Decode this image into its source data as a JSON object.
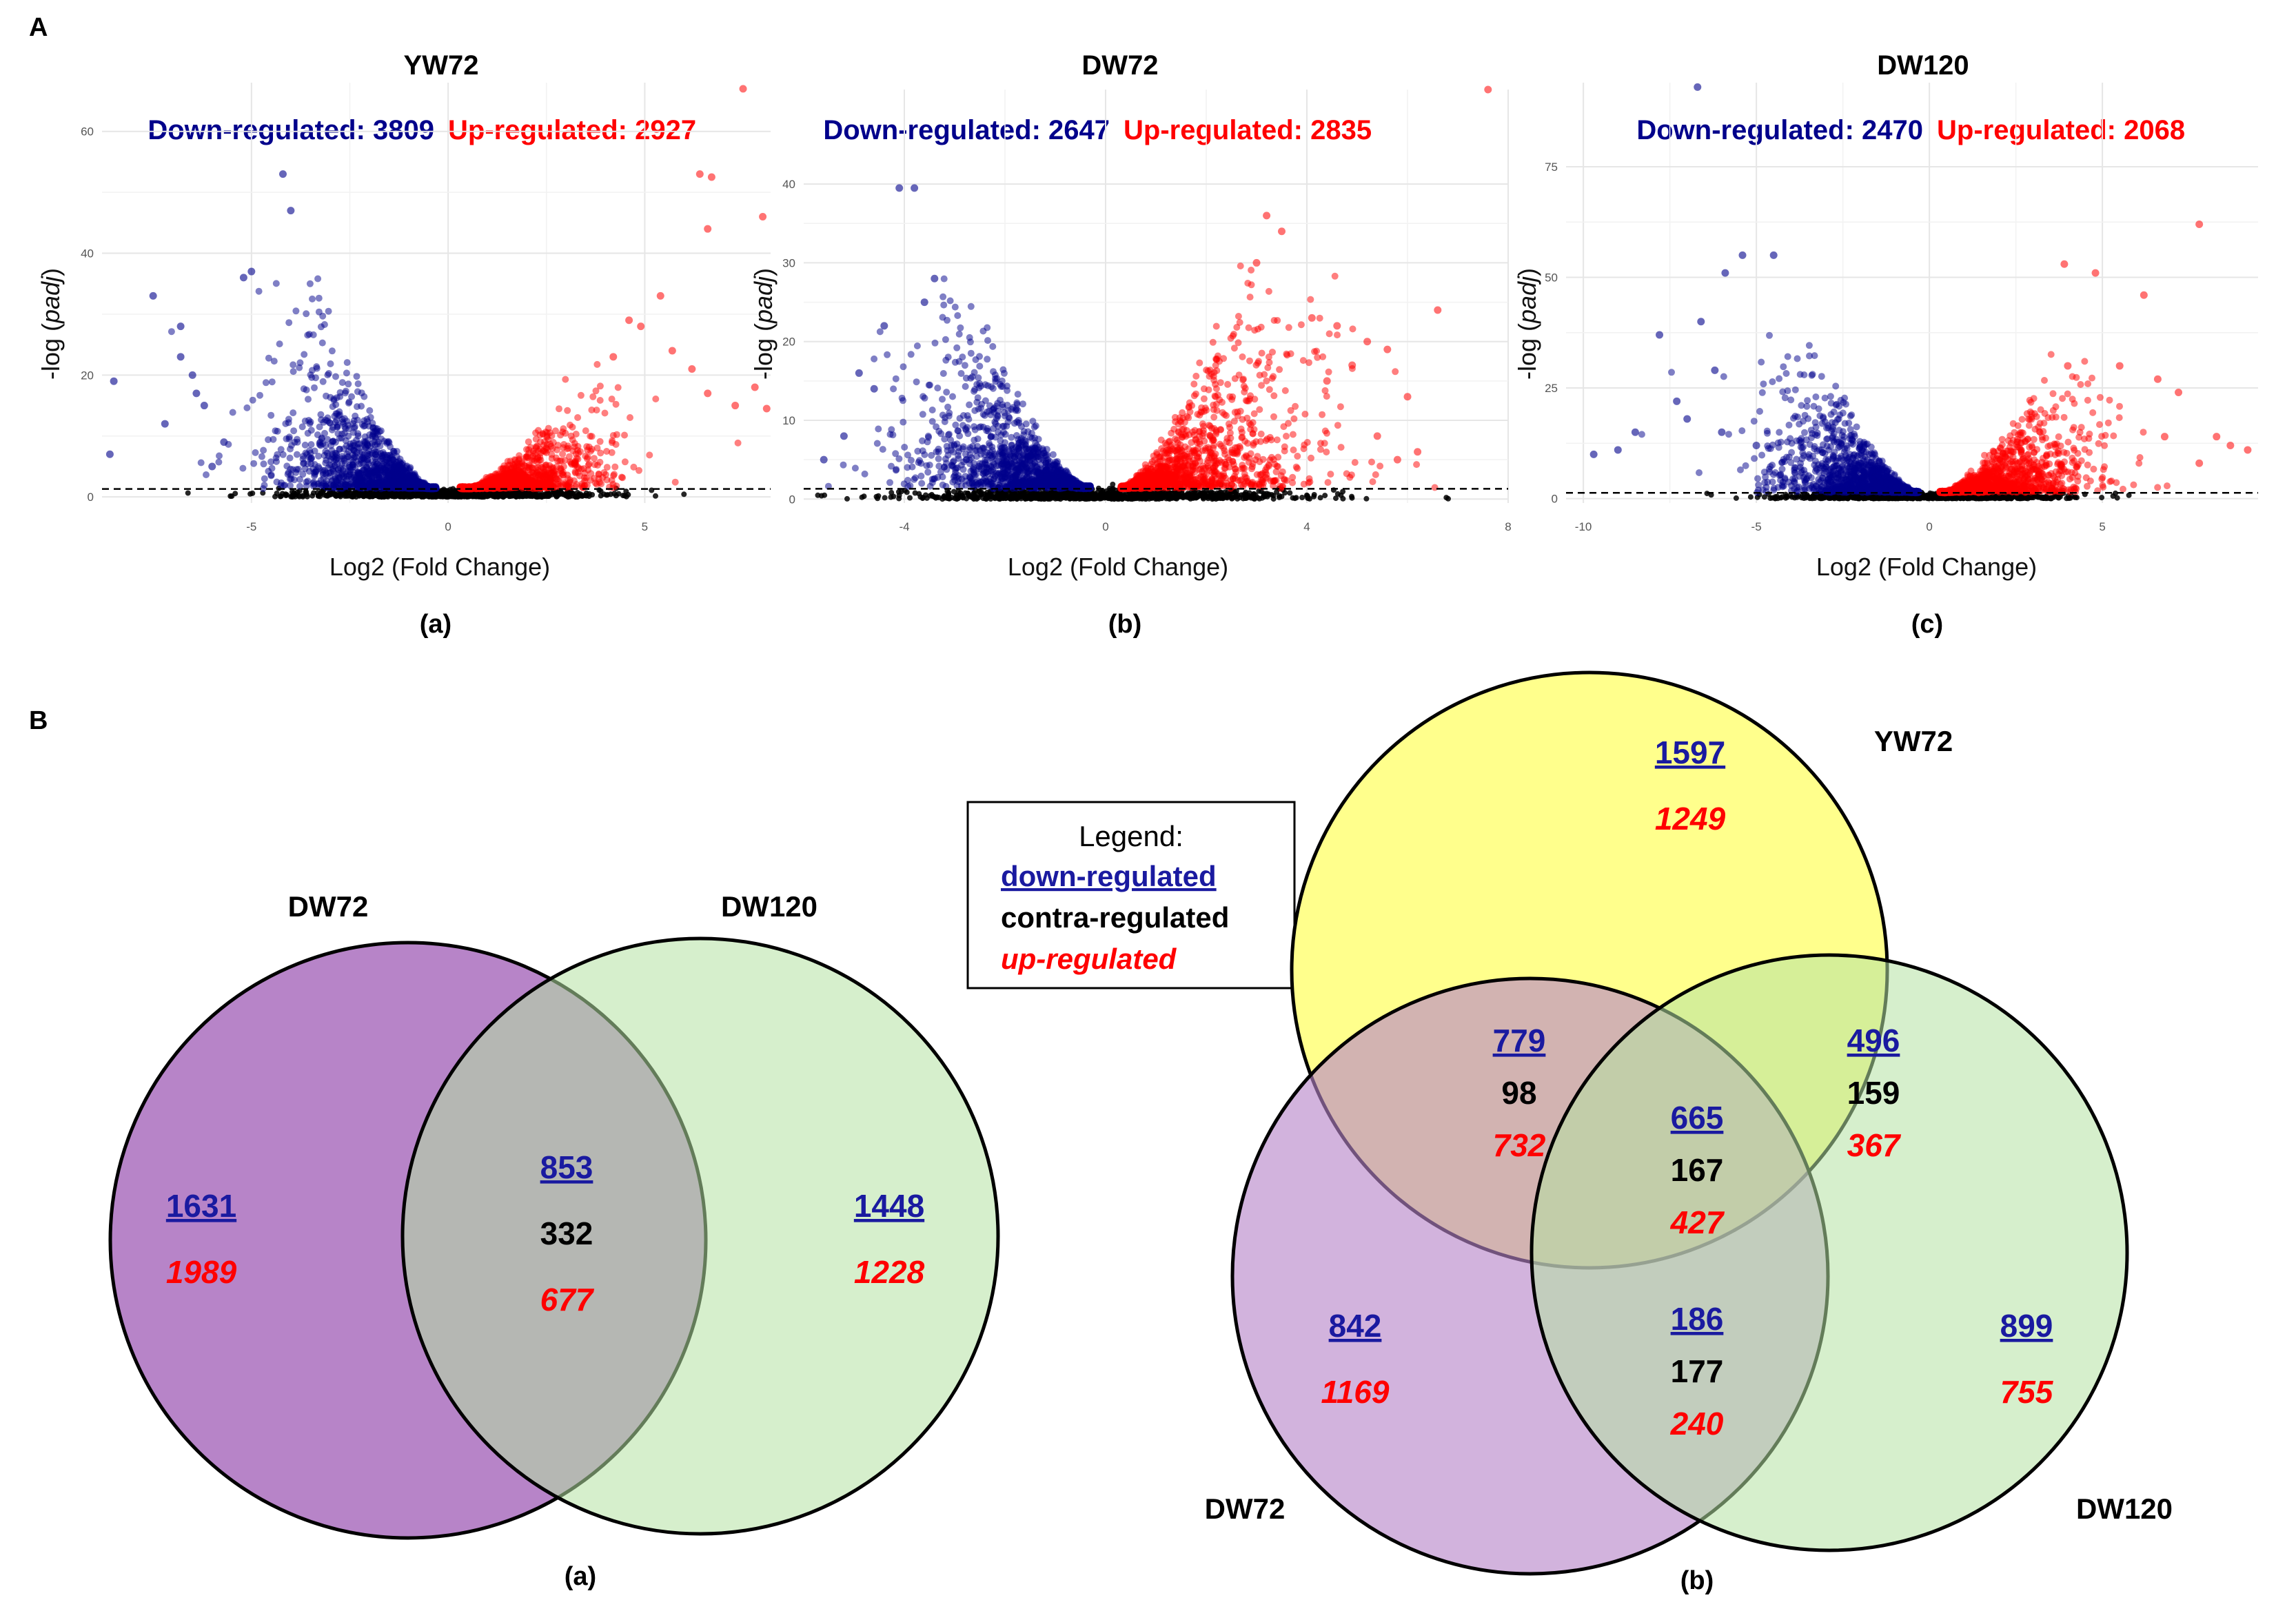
{
  "panel_A_label": "A",
  "panel_B_label": "B",
  "chart_data": [
    {
      "type": "scatter",
      "id": "a",
      "title": "YW72",
      "subtitle_down": "Down-regulated: 3809",
      "subtitle_up": "Up-regulated: 2927",
      "down_count": 3809,
      "up_count": 2927,
      "xlabel": "Log2 (Fold Change)",
      "ylabel_prefix": "-log (",
      "ylabel_italic": "padj",
      "ylabel_suffix": ")",
      "xlim": [
        -8.8,
        8.2
      ],
      "ylim": [
        -1,
        68
      ],
      "xticks": [
        -5,
        0,
        5
      ],
      "yticks": [
        0,
        20,
        40,
        60
      ],
      "threshold": 1.3,
      "sub_label": "(a)",
      "down_color": "#00008B",
      "up_color": "#FF0000",
      "ns_color": "#000000",
      "cloud": {
        "down_peak_x": -3.3,
        "down_peak_y": 38,
        "up_peak_x": 3.3,
        "up_peak_y": 23,
        "spread_down": 3.2,
        "spread_up": 3.0
      },
      "outliers_up": [
        [
          7.5,
          67
        ],
        [
          6.4,
          53
        ],
        [
          6.7,
          52.5
        ],
        [
          8.0,
          46
        ],
        [
          6.6,
          44
        ],
        [
          5.4,
          33
        ],
        [
          4.6,
          29
        ],
        [
          4.9,
          28
        ],
        [
          5.7,
          24
        ],
        [
          4.2,
          23
        ],
        [
          6.2,
          21
        ],
        [
          7.8,
          18
        ],
        [
          6.6,
          17
        ],
        [
          7.3,
          15
        ],
        [
          8.1,
          14.5
        ]
      ],
      "outliers_down": [
        [
          -4.2,
          53
        ],
        [
          -4.0,
          47
        ],
        [
          -5.0,
          37
        ],
        [
          -5.2,
          36
        ],
        [
          -7.5,
          33
        ],
        [
          -6.8,
          28
        ],
        [
          -8.5,
          19
        ],
        [
          -6.8,
          23
        ],
        [
          -6.5,
          20
        ],
        [
          -6.4,
          17
        ],
        [
          -6.2,
          15
        ],
        [
          -7.2,
          12
        ],
        [
          -8.6,
          7
        ],
        [
          -5.7,
          9
        ],
        [
          -6.0,
          5
        ]
      ]
    },
    {
      "type": "scatter",
      "id": "b",
      "title": "DW72",
      "subtitle_down": "Down-regulated: 2647",
      "subtitle_up": "Up-regulated: 2835",
      "down_count": 2647,
      "up_count": 2835,
      "xlabel": "Log2 (Fold Change)",
      "ylabel_prefix": "-log (",
      "ylabel_italic": "padj",
      "ylabel_suffix": ")",
      "xlim": [
        -6,
        8
      ],
      "ylim": [
        -0.5,
        52
      ],
      "xticks": [
        -4,
        0,
        4,
        8
      ],
      "yticks": [
        0,
        10,
        20,
        30,
        40
      ],
      "threshold": 1.3,
      "sub_label": "(b)",
      "down_color": "#00008B",
      "up_color": "#FF0000",
      "ns_color": "#000000",
      "cloud": {
        "down_peak_x": -2.8,
        "down_peak_y": 31,
        "up_peak_x": 2.6,
        "up_peak_y": 33,
        "spread_down": 2.8,
        "spread_up": 3.0
      },
      "outliers_up": [
        [
          7.6,
          52
        ],
        [
          3.2,
          36
        ],
        [
          3.5,
          34
        ],
        [
          3.0,
          30
        ],
        [
          4.1,
          23
        ],
        [
          4.6,
          22
        ],
        [
          5.2,
          20
        ],
        [
          5.6,
          19
        ],
        [
          6.6,
          24
        ],
        [
          4.9,
          17
        ],
        [
          6.0,
          13
        ],
        [
          4.4,
          15
        ],
        [
          5.4,
          8
        ],
        [
          6.2,
          6
        ],
        [
          5.8,
          5
        ]
      ],
      "outliers_down": [
        [
          -3.8,
          39.5
        ],
        [
          -4.1,
          39.5
        ],
        [
          -4.4,
          22
        ],
        [
          -4.9,
          16
        ],
        [
          -5.2,
          8
        ],
        [
          -4.6,
          14
        ],
        [
          -5.6,
          5
        ],
        [
          -3.4,
          28
        ],
        [
          -3.6,
          25
        ]
      ]
    },
    {
      "type": "scatter",
      "id": "c",
      "title": "DW120",
      "subtitle_down": "Down-regulated: 2470",
      "subtitle_up": "Up-regulated: 2068",
      "down_count": 2470,
      "up_count": 2068,
      "xlabel": "Log2 (Fold Change)",
      "ylabel_prefix": "-log (",
      "ylabel_italic": "padj",
      "ylabel_suffix": ")",
      "xlim": [
        -10.5,
        9.5
      ],
      "ylim": [
        -1,
        94
      ],
      "xticks": [
        -10,
        -5,
        0,
        5
      ],
      "yticks": [
        0,
        25,
        50,
        75
      ],
      "threshold": 1.3,
      "sub_label": "(c)",
      "down_color": "#00008B",
      "up_color": "#FF0000",
      "ns_color": "#000000",
      "cloud": {
        "down_peak_x": -3.3,
        "down_peak_y": 40,
        "up_peak_x": 3.3,
        "up_peak_y": 33,
        "spread_down": 3.4,
        "spread_up": 3.6
      },
      "outliers_up": [
        [
          7.8,
          62
        ],
        [
          3.9,
          53
        ],
        [
          4.8,
          51
        ],
        [
          6.2,
          46
        ],
        [
          4.0,
          30
        ],
        [
          5.5,
          30
        ],
        [
          6.6,
          27
        ],
        [
          7.2,
          24
        ],
        [
          8.3,
          14
        ],
        [
          8.7,
          12
        ],
        [
          9.2,
          11
        ],
        [
          7.8,
          8
        ],
        [
          6.8,
          14
        ]
      ],
      "outliers_down": [
        [
          -6.7,
          93
        ],
        [
          -5.4,
          55
        ],
        [
          -5.9,
          51
        ],
        [
          -4.5,
          55
        ],
        [
          -7.8,
          37
        ],
        [
          -6.6,
          40
        ],
        [
          -6.2,
          29
        ],
        [
          -7.3,
          22
        ],
        [
          -9.0,
          11
        ],
        [
          -9.7,
          10
        ],
        [
          -8.5,
          15
        ],
        [
          -7.0,
          18
        ],
        [
          -6.0,
          15
        ],
        [
          -5.0,
          12
        ]
      ]
    },
    {
      "type": "venn",
      "id": "venn_a",
      "sub_label": "(a)",
      "sets": [
        {
          "name": "DW72",
          "color": "#b784c8"
        },
        {
          "name": "DW120",
          "color": "#b5e2a2"
        }
      ],
      "regions": [
        {
          "region": "DW72 only",
          "down": "1631",
          "up": "1989"
        },
        {
          "region": "DW72 ∩ DW120",
          "down": "853",
          "contra": "332",
          "up": "677"
        },
        {
          "region": "DW120 only",
          "down": "1448",
          "up": "1228"
        }
      ]
    },
    {
      "type": "venn",
      "id": "venn_b",
      "sub_label": "(b)",
      "sets": [
        {
          "name": "YW72",
          "color": "#ffff8c"
        },
        {
          "name": "DW72",
          "color": "#b784c8"
        },
        {
          "name": "DW120",
          "color": "#b5e2a2"
        }
      ],
      "regions": [
        {
          "region": "YW72 only",
          "down": "1597",
          "up": "1249"
        },
        {
          "region": "YW72 ∩ DW72",
          "down": "779",
          "contra": "98",
          "up": "732"
        },
        {
          "region": "YW72 ∩ DW120",
          "down": "496",
          "contra": "159",
          "up": "367"
        },
        {
          "region": "YW72 ∩ DW72 ∩ DW120",
          "down": "665",
          "contra": "167",
          "up": "427"
        },
        {
          "region": "DW72 only",
          "down": "842",
          "up": "1169"
        },
        {
          "region": "DW72 ∩ DW120",
          "down": "186",
          "contra": "177",
          "up": "240"
        },
        {
          "region": "DW120 only",
          "down": "899",
          "up": "755"
        }
      ]
    }
  ],
  "legend": {
    "title": "Legend:",
    "down": "down-regulated",
    "contra": "contra-regulated",
    "up": "up-regulated",
    "down_color": "#1a1aa0",
    "contra_color": "#000000",
    "up_color": "#ff0000"
  }
}
